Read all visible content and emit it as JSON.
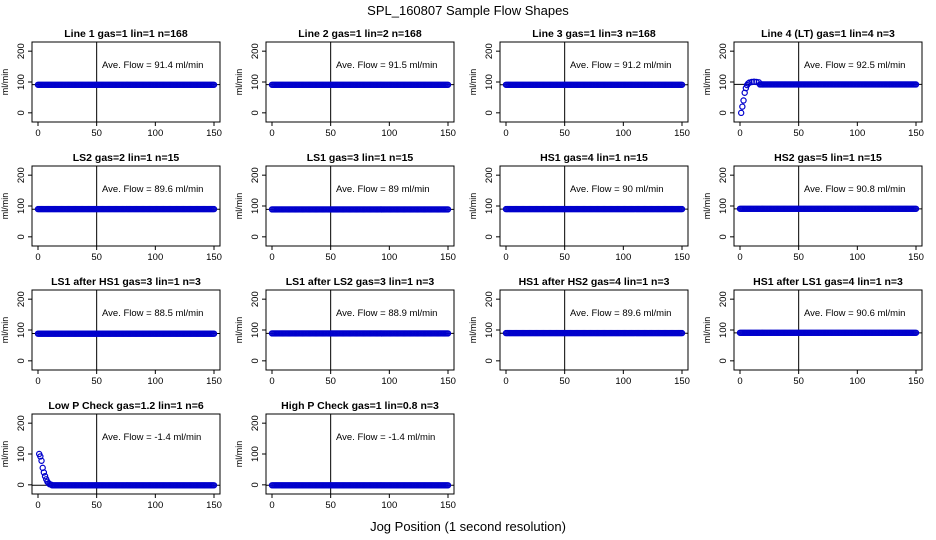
{
  "title": "SPL_160807  Sample Flow Shapes",
  "xlabel": "Jog Position (1 second resolution)",
  "ylabel": "ml/min",
  "colors": {
    "points": "#0000cc",
    "axes": "#000000",
    "background": "#ffffff"
  },
  "chart_data": [
    {
      "type": "scatter",
      "title": "Line 1 gas=1 lin=1 n=168",
      "annotation": "Ave. Flow = 91.4  ml/min",
      "ave": 91.4,
      "shape": "flat",
      "level": 91,
      "xlim": [
        0,
        150
      ],
      "ylim": [
        -20,
        220
      ],
      "xticks": [
        "0",
        "50",
        "100",
        "150"
      ],
      "yticks": [
        "0",
        "100",
        "200"
      ]
    },
    {
      "type": "scatter",
      "title": "Line 2 gas=1 lin=2 n=168",
      "annotation": "Ave. Flow = 91.5  ml/min",
      "ave": 91.5,
      "shape": "flat",
      "level": 91,
      "xlim": [
        0,
        150
      ],
      "ylim": [
        -20,
        220
      ],
      "xticks": [
        "0",
        "50",
        "100",
        "150"
      ],
      "yticks": [
        "0",
        "100",
        "200"
      ]
    },
    {
      "type": "scatter",
      "title": "Line 3 gas=1 lin=3 n=168",
      "annotation": "Ave. Flow = 91.2  ml/min",
      "ave": 91.2,
      "shape": "flat",
      "level": 91,
      "xlim": [
        0,
        150
      ],
      "ylim": [
        -20,
        220
      ],
      "xticks": [
        "0",
        "50",
        "100",
        "150"
      ],
      "yticks": [
        "0",
        "100",
        "200"
      ]
    },
    {
      "type": "scatter",
      "title": "Line 4 (LT) gas=1 lin=4 n=3",
      "annotation": "Ave. Flow = 92.5  ml/min",
      "ave": 92.5,
      "shape": "rampup",
      "level": 92,
      "xlim": [
        0,
        150
      ],
      "ylim": [
        -20,
        220
      ],
      "xticks": [
        "0",
        "50",
        "100",
        "150"
      ],
      "yticks": [
        "0",
        "100",
        "200"
      ],
      "early_points": [
        [
          1,
          0
        ],
        [
          2,
          20
        ],
        [
          3,
          40
        ],
        [
          4,
          65
        ],
        [
          5,
          80
        ],
        [
          6,
          90
        ],
        [
          7,
          95
        ],
        [
          8,
          98
        ],
        [
          10,
          100
        ],
        [
          12,
          101
        ],
        [
          14,
          100
        ],
        [
          16,
          99
        ]
      ]
    },
    {
      "type": "scatter",
      "title": "LS2 gas=2 lin=1 n=15",
      "annotation": "Ave. Flow = 89.6  ml/min",
      "ave": 89.6,
      "shape": "flat",
      "level": 90,
      "xlim": [
        0,
        150
      ],
      "ylim": [
        -20,
        220
      ],
      "xticks": [
        "0",
        "50",
        "100",
        "150"
      ],
      "yticks": [
        "0",
        "100",
        "200"
      ]
    },
    {
      "type": "scatter",
      "title": "LS1 gas=3 lin=1 n=15",
      "annotation": "Ave. Flow = 89  ml/min",
      "ave": 89,
      "shape": "flat",
      "level": 89,
      "xlim": [
        0,
        150
      ],
      "ylim": [
        -20,
        220
      ],
      "xticks": [
        "0",
        "50",
        "100",
        "150"
      ],
      "yticks": [
        "0",
        "100",
        "200"
      ]
    },
    {
      "type": "scatter",
      "title": "HS1 gas=4 lin=1 n=15",
      "annotation": "Ave. Flow = 90  ml/min",
      "ave": 90,
      "shape": "flat",
      "level": 90,
      "xlim": [
        0,
        150
      ],
      "ylim": [
        -20,
        220
      ],
      "xticks": [
        "0",
        "50",
        "100",
        "150"
      ],
      "yticks": [
        "0",
        "100",
        "200"
      ]
    },
    {
      "type": "scatter",
      "title": "HS2 gas=5 lin=1 n=15",
      "annotation": "Ave. Flow = 90.8  ml/min",
      "ave": 90.8,
      "shape": "flat",
      "level": 91,
      "xlim": [
        0,
        150
      ],
      "ylim": [
        -20,
        220
      ],
      "xticks": [
        "0",
        "50",
        "100",
        "150"
      ],
      "yticks": [
        "0",
        "100",
        "200"
      ]
    },
    {
      "type": "scatter",
      "title": "LS1 after HS1 gas=3 lin=1 n=3",
      "annotation": "Ave. Flow = 88.5  ml/min",
      "ave": 88.5,
      "shape": "flat",
      "level": 88,
      "xlim": [
        0,
        150
      ],
      "ylim": [
        -20,
        220
      ],
      "xticks": [
        "0",
        "50",
        "100",
        "150"
      ],
      "yticks": [
        "0",
        "100",
        "200"
      ]
    },
    {
      "type": "scatter",
      "title": "LS1 after LS2 gas=3 lin=1 n=3",
      "annotation": "Ave. Flow = 88.9  ml/min",
      "ave": 88.9,
      "shape": "flat",
      "level": 89,
      "xlim": [
        0,
        150
      ],
      "ylim": [
        -20,
        220
      ],
      "xticks": [
        "0",
        "50",
        "100",
        "150"
      ],
      "yticks": [
        "0",
        "100",
        "200"
      ]
    },
    {
      "type": "scatter",
      "title": "HS1 after HS2 gas=4 lin=1 n=3",
      "annotation": "Ave. Flow = 89.6  ml/min",
      "ave": 89.6,
      "shape": "flat",
      "level": 90,
      "xlim": [
        0,
        150
      ],
      "ylim": [
        -20,
        220
      ],
      "xticks": [
        "0",
        "50",
        "100",
        "150"
      ],
      "yticks": [
        "0",
        "100",
        "200"
      ]
    },
    {
      "type": "scatter",
      "title": "HS1 after LS1 gas=4 lin=1 n=3",
      "annotation": "Ave. Flow = 90.6  ml/min",
      "ave": 90.6,
      "shape": "flat",
      "level": 91,
      "xlim": [
        0,
        150
      ],
      "ylim": [
        -20,
        220
      ],
      "xticks": [
        "0",
        "50",
        "100",
        "150"
      ],
      "yticks": [
        "0",
        "100",
        "200"
      ]
    },
    {
      "type": "scatter",
      "title": "Low P Check gas=1.2 lin=1 n=6",
      "annotation": "Ave. Flow = -1.4  ml/min",
      "ave": -1.4,
      "shape": "decay",
      "level": -1.4,
      "xlim": [
        0,
        150
      ],
      "ylim": [
        -20,
        220
      ],
      "xticks": [
        "0",
        "50",
        "100",
        "150"
      ],
      "yticks": [
        "0",
        "100",
        "200"
      ],
      "early_points": [
        [
          1,
          100
        ],
        [
          2,
          92
        ],
        [
          3,
          78
        ],
        [
          4,
          55
        ],
        [
          5,
          40
        ],
        [
          6,
          28
        ],
        [
          7,
          18
        ],
        [
          8,
          10
        ],
        [
          9,
          5
        ],
        [
          10,
          2
        ],
        [
          11,
          1
        ]
      ]
    },
    {
      "type": "scatter",
      "title": "High P Check gas=1 lin=0.8 n=3",
      "annotation": "Ave. Flow = -1.4  ml/min",
      "ave": -1.4,
      "shape": "flat",
      "level": -1.4,
      "xlim": [
        0,
        150
      ],
      "ylim": [
        -20,
        220
      ],
      "xticks": [
        "0",
        "50",
        "100",
        "150"
      ],
      "yticks": [
        "0",
        "100",
        "200"
      ]
    }
  ]
}
